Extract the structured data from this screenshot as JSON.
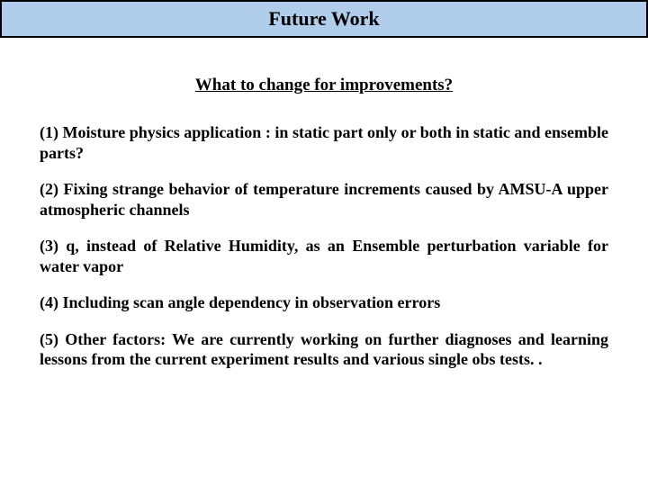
{
  "title": "Future Work",
  "subtitle": "What to change for improvements?",
  "items": [
    "(1) Moisture physics application : in static part only or both in static and ensemble parts?",
    "(2) Fixing strange behavior of temperature increments caused by AMSU-A upper atmospheric channels",
    "(3) q, instead of Relative Humidity, as an Ensemble perturbation variable for water vapor",
    "(4) Including scan angle dependency in observation errors",
    "(5) Other factors: We are currently working on further diagnoses and learning lessons from the current experiment results and various single obs tests. ."
  ],
  "colors": {
    "title_bg": "#b0cdec",
    "title_border": "#000000",
    "text": "#000000",
    "page_bg": "#ffffff"
  },
  "fonts": {
    "title_size": 22,
    "subtitle_size": 19,
    "item_size": 18,
    "family": "Times New Roman"
  }
}
